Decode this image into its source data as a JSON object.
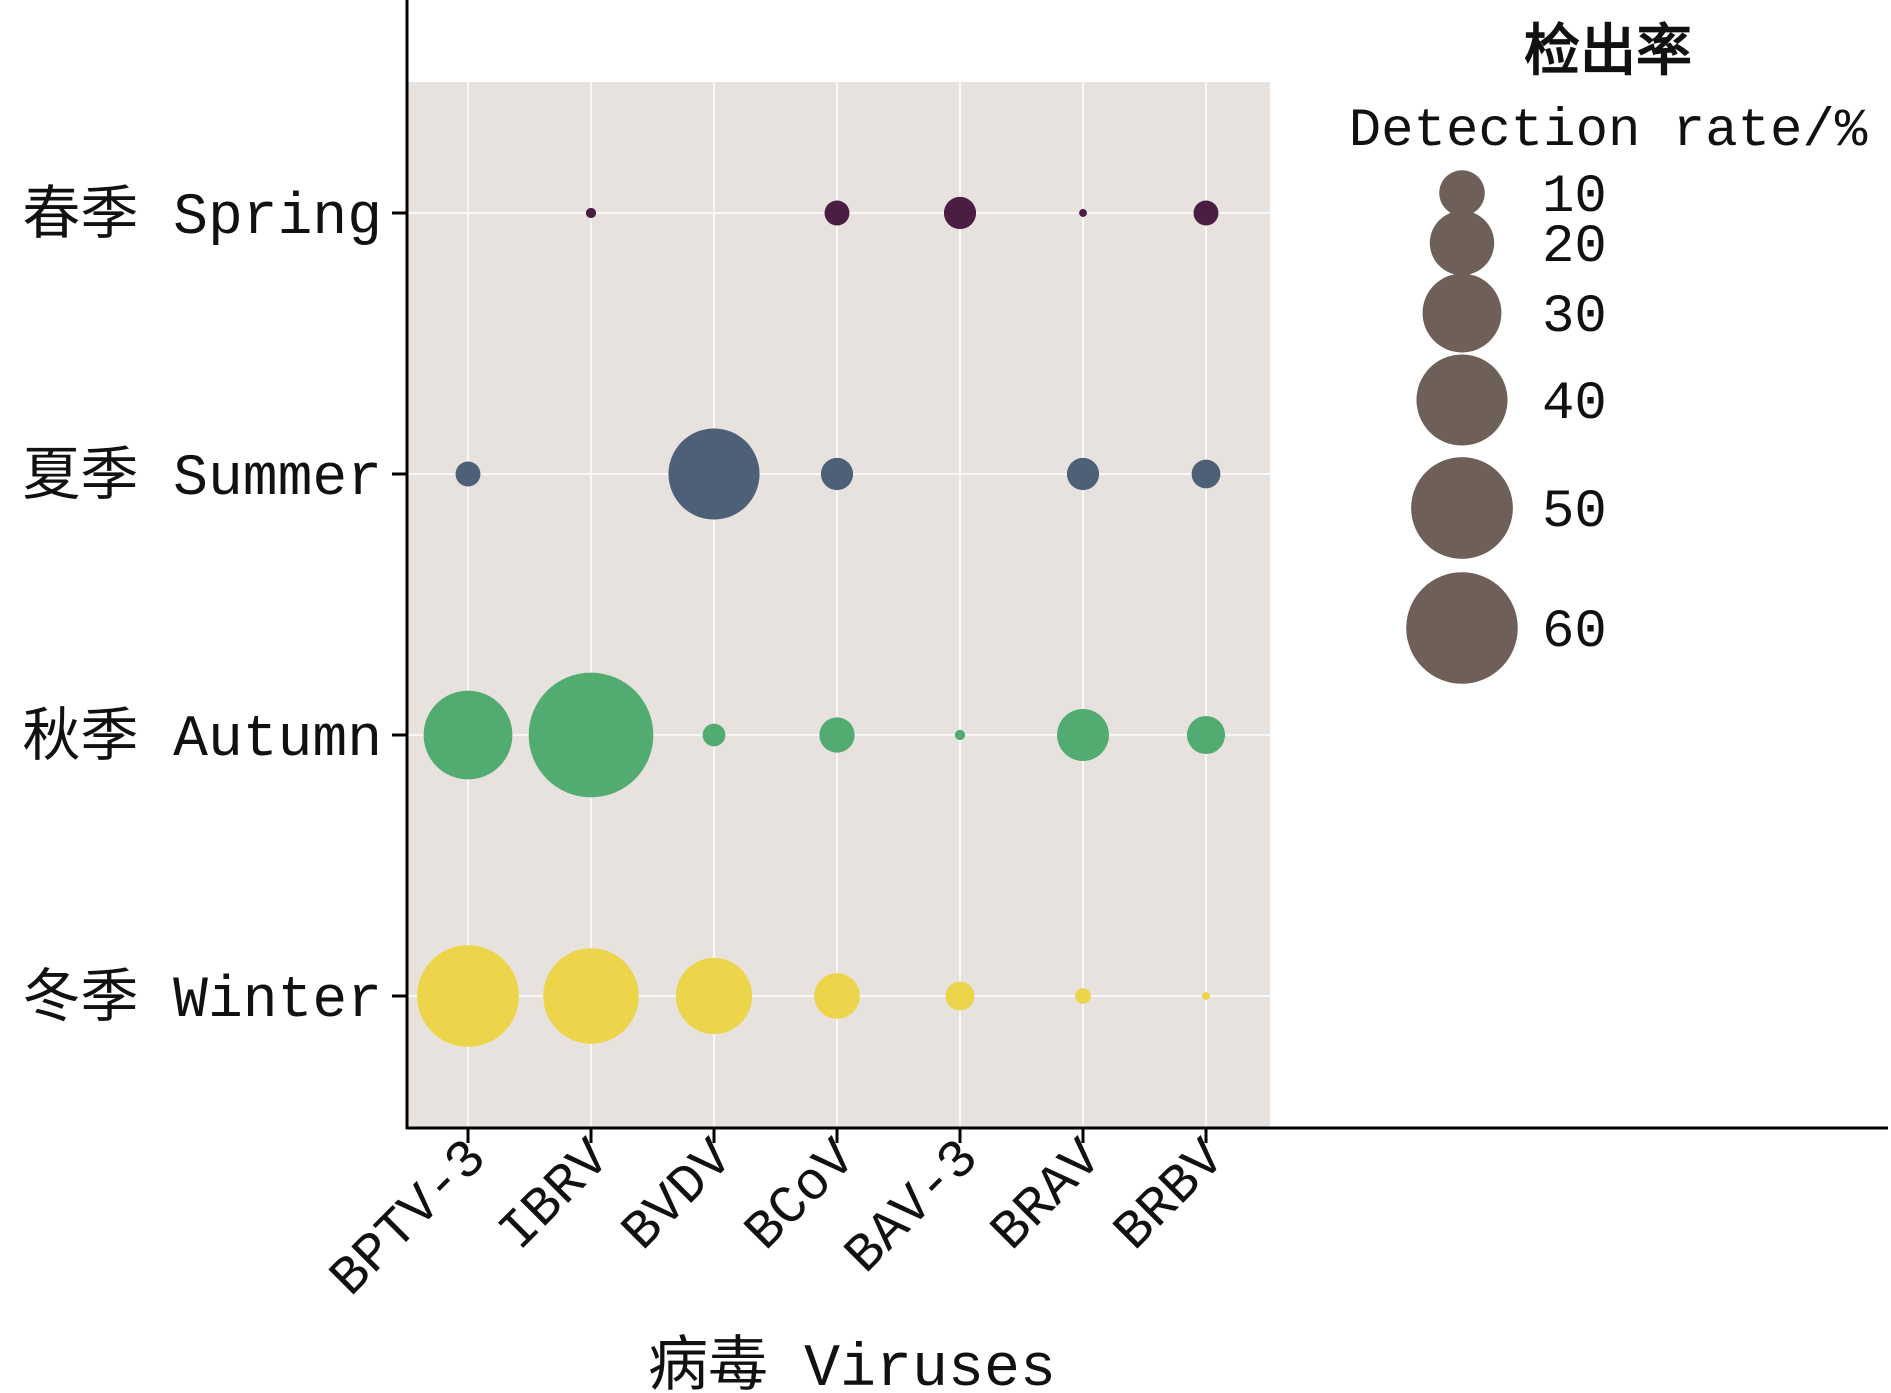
{
  "chart_data": {
    "type": "scatter",
    "xlabel": "病毒 Viruses",
    "categories": [
      "BPTV-3",
      "IBRV",
      "BVDV",
      "BCoV",
      "BAV-3",
      "BRAV",
      "BRBV"
    ],
    "seasons": [
      {
        "name": "春季 Spring",
        "color": "#4a1e42",
        "values": [
          0,
          0.5,
          0,
          3,
          5,
          0.3,
          3
        ]
      },
      {
        "name": "夏季 Summer",
        "color": "#4d6078",
        "values": [
          3,
          0,
          40,
          5,
          0,
          5,
          4
        ]
      },
      {
        "name": "秋季 Autumn",
        "color": "#52ab70",
        "values": [
          38,
          75,
          2.5,
          6,
          0.5,
          13,
          7
        ]
      },
      {
        "name": "冬季 Winter",
        "color": "#ecd54a",
        "values": [
          50,
          44,
          28,
          10,
          4,
          1.2,
          0.3
        ]
      }
    ],
    "size_legend": {
      "title": "检出率",
      "subtitle": "Detection rate/%",
      "levels": [
        10,
        20,
        30,
        40,
        50,
        60
      ],
      "color": "#6e6059"
    },
    "panel_background": "#e8e2df",
    "grid": true
  }
}
